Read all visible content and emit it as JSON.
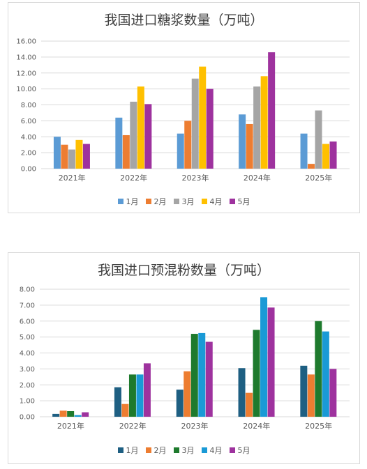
{
  "chart_data": [
    {
      "type": "bar",
      "title": "我国进口糖浆数量（万吨）",
      "categories": [
        "2021年",
        "2022年",
        "2023年",
        "2024年",
        "2025年"
      ],
      "ylim": [
        0,
        16
      ],
      "yticks": [
        "0.00",
        "2.00",
        "4.00",
        "6.00",
        "8.00",
        "10.00",
        "12.00",
        "14.00",
        "16.00"
      ],
      "grid": true,
      "legend_position": "bottom",
      "series": [
        {
          "name": "1月",
          "color": "#5b9bd5",
          "values": [
            4.0,
            6.4,
            4.4,
            6.8,
            4.4
          ]
        },
        {
          "name": "2月",
          "color": "#ed7d31",
          "values": [
            3.0,
            4.2,
            6.0,
            5.6,
            0.6
          ]
        },
        {
          "name": "3月",
          "color": "#a5a5a5",
          "values": [
            2.4,
            8.4,
            11.3,
            10.3,
            7.3
          ]
        },
        {
          "name": "4月",
          "color": "#ffc000",
          "values": [
            3.6,
            10.3,
            12.8,
            11.6,
            3.1
          ]
        },
        {
          "name": "5月",
          "color": "#9e329e",
          "values": [
            3.1,
            8.1,
            10.0,
            14.6,
            3.4
          ]
        }
      ]
    },
    {
      "type": "bar",
      "title": "我国进口预混粉数量（万吨）",
      "categories": [
        "2021年",
        "2022年",
        "2023年",
        "2024年",
        "2025年"
      ],
      "ylim": [
        0,
        8
      ],
      "yticks": [
        "0.00",
        "1.00",
        "2.00",
        "3.00",
        "4.00",
        "5.00",
        "6.00",
        "7.00",
        "8.00"
      ],
      "grid": true,
      "legend_position": "bottom",
      "series": [
        {
          "name": "1月",
          "color": "#1e5f82",
          "values": [
            0.18,
            1.85,
            1.7,
            3.05,
            3.2
          ]
        },
        {
          "name": "2月",
          "color": "#ed7d31",
          "values": [
            0.38,
            0.8,
            2.85,
            1.5,
            2.65
          ]
        },
        {
          "name": "3月",
          "color": "#1e7a2d",
          "values": [
            0.35,
            2.65,
            5.2,
            5.45,
            6.0
          ]
        },
        {
          "name": "4月",
          "color": "#1a9ad6",
          "values": [
            0.1,
            2.65,
            5.25,
            7.5,
            5.35
          ]
        },
        {
          "name": "5月",
          "color": "#9e329e",
          "values": [
            0.28,
            3.35,
            4.7,
            6.85,
            3.0
          ]
        }
      ]
    }
  ]
}
